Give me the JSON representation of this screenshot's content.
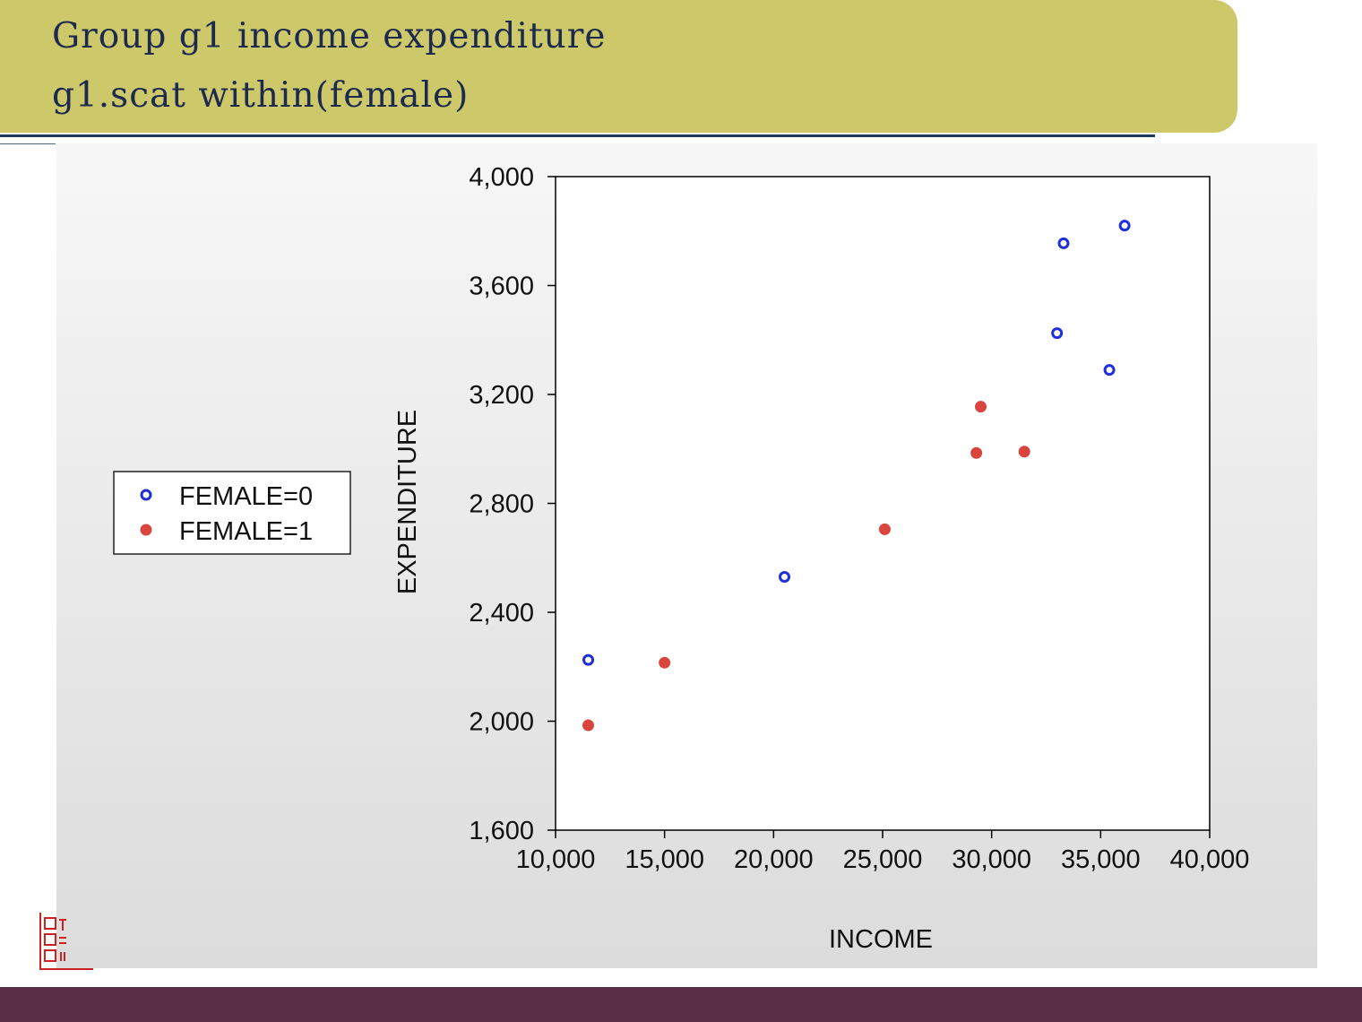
{
  "slide": {
    "title_line1": "Group g1 income expenditure",
    "title_line2": "g1.scat within(female)"
  },
  "colors": {
    "title_band": "#cdc86a",
    "title_text": "#1d2a4d",
    "footer": "#5b2e47",
    "series_female0": "#1f2fdc",
    "series_female1": "#d9443c"
  },
  "chart_data": {
    "type": "scatter",
    "xlabel": "INCOME",
    "ylabel": "EXPENDITURE",
    "xlim": [
      10000,
      40000
    ],
    "ylim": [
      1600,
      4000
    ],
    "xticks": [
      10000,
      15000,
      20000,
      25000,
      30000,
      35000,
      40000
    ],
    "xtick_labels": [
      "10,000",
      "15,000",
      "20,000",
      "25,000",
      "30,000",
      "35,000",
      "40,000"
    ],
    "yticks": [
      1600,
      2000,
      2400,
      2800,
      3200,
      3600,
      4000
    ],
    "ytick_labels": [
      "1,600",
      "2,000",
      "2,400",
      "2,800",
      "3,200",
      "3,600",
      "4,000"
    ],
    "legend_position": "left",
    "grid": false,
    "series": [
      {
        "name": "FEMALE=0",
        "marker": "hollow-circle",
        "color": "#1f2fdc",
        "points": [
          [
            11500,
            2225
          ],
          [
            20500,
            2530
          ],
          [
            33000,
            3425
          ],
          [
            33300,
            3755
          ],
          [
            35400,
            3290
          ],
          [
            36100,
            3820
          ]
        ]
      },
      {
        "name": "FEMALE=1",
        "marker": "filled-circle",
        "color": "#d9443c",
        "points": [
          [
            11500,
            1985
          ],
          [
            15000,
            2215
          ],
          [
            25100,
            2705
          ],
          [
            29300,
            2985
          ],
          [
            29500,
            3155
          ],
          [
            31500,
            2990
          ]
        ]
      }
    ]
  }
}
